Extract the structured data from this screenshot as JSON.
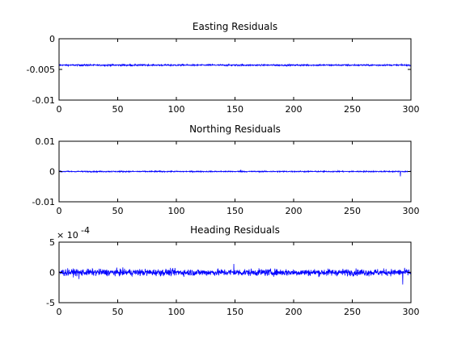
{
  "chart_data": [
    {
      "type": "line",
      "title": "Easting Residuals",
      "xlim": [
        0,
        300
      ],
      "ylim": [
        -0.01,
        0
      ],
      "x_ticks": [
        0,
        50,
        100,
        150,
        200,
        250,
        300
      ],
      "x_tick_labels": [
        "0",
        "50",
        "100",
        "150",
        "200",
        "250",
        "300"
      ],
      "y_ticks": [
        -0.01,
        -0.005,
        0
      ],
      "y_tick_labels": [
        "-0.01",
        "-0.005",
        "0"
      ],
      "grid": false,
      "line_color": "#0000ff",
      "series": [
        {
          "mean": -0.0043,
          "noise_amplitude": 0.00012,
          "spikes": [
            [
              300,
              -0.0047
            ]
          ]
        }
      ]
    },
    {
      "type": "line",
      "title": "Northing Residuals",
      "xlim": [
        0,
        300
      ],
      "ylim": [
        -0.01,
        0.01
      ],
      "x_ticks": [
        0,
        50,
        100,
        150,
        200,
        250,
        300
      ],
      "x_tick_labels": [
        "0",
        "50",
        "100",
        "150",
        "200",
        "250",
        "300"
      ],
      "y_ticks": [
        -0.01,
        0,
        0.01
      ],
      "y_tick_labels": [
        "-0.01",
        "0",
        "0.01"
      ],
      "grid": false,
      "line_color": "#0000ff",
      "series": [
        {
          "mean": 0.0,
          "noise_amplitude": 0.00018,
          "spikes": [
            [
              155,
              0.0006
            ],
            [
              291,
              -0.0016
            ]
          ]
        }
      ]
    },
    {
      "type": "line",
      "title": "Heading Residuals",
      "xlim": [
        0,
        300
      ],
      "ylim": [
        -5,
        5
      ],
      "y_scale_label": "× 10",
      "y_scale_exponent": "-4",
      "x_ticks": [
        0,
        50,
        100,
        150,
        200,
        250,
        300
      ],
      "x_tick_labels": [
        "0",
        "50",
        "100",
        "150",
        "200",
        "250",
        "300"
      ],
      "y_ticks": [
        -5,
        0,
        5
      ],
      "y_tick_labels": [
        "-5",
        "0",
        "5"
      ],
      "grid": false,
      "line_color": "#0000ff",
      "series": [
        {
          "mean": 0.0,
          "noise_amplitude": 0.55,
          "spikes": [
            [
              17,
              -1.1
            ],
            [
              149,
              1.4
            ],
            [
              293,
              -2.0
            ]
          ]
        }
      ]
    }
  ]
}
